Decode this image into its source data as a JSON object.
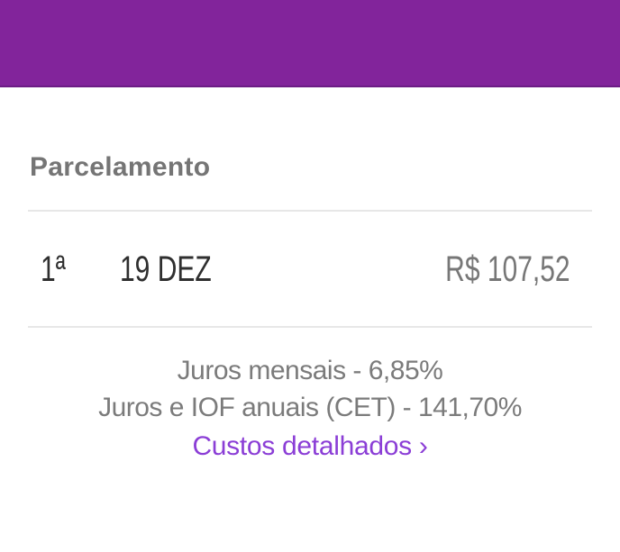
{
  "header": {
    "background_color": "#82249B",
    "border_color": "#6C1D85"
  },
  "section": {
    "title": "Parcelamento"
  },
  "installments": [
    {
      "index": "1ª",
      "date": "19 DEZ",
      "amount": "R$ 107,52"
    }
  ],
  "summary": {
    "monthly_interest": "Juros mensais - 6,85%",
    "annual_interest": "Juros e IOF anuais (CET) - 141,70%",
    "details_link_label": "Custos detalhados",
    "chevron_icon": "›"
  },
  "colors": {
    "header_purple": "#82249B",
    "link_purple": "#8B3ED6",
    "title_gray": "#757575",
    "row_text_dark": "#2F2F2F",
    "amount_gray": "#777777",
    "summary_gray": "#7B7B7B",
    "divider_gray": "#E7E7E7"
  }
}
